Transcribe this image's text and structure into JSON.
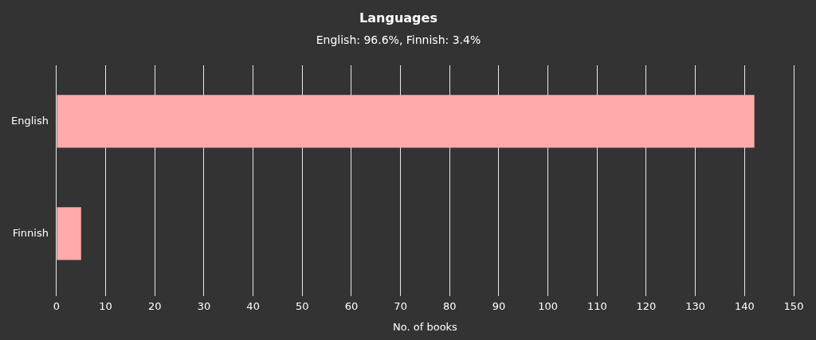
{
  "chart_data": {
    "type": "bar",
    "orientation": "horizontal",
    "title": "Languages",
    "subtitle": "English: 96.6%, Finnish: 3.4%",
    "xlabel": "No. of books",
    "categories": [
      "English",
      "Finnish"
    ],
    "series": [
      {
        "color": "#ffaaaa",
        "values": [
          142,
          5
        ]
      }
    ],
    "xlim": [
      0,
      150
    ],
    "xticks": [
      0,
      10,
      20,
      30,
      40,
      50,
      60,
      70,
      80,
      90,
      100,
      110,
      120,
      130,
      140,
      150
    ],
    "grid": "x",
    "legend": false
  }
}
